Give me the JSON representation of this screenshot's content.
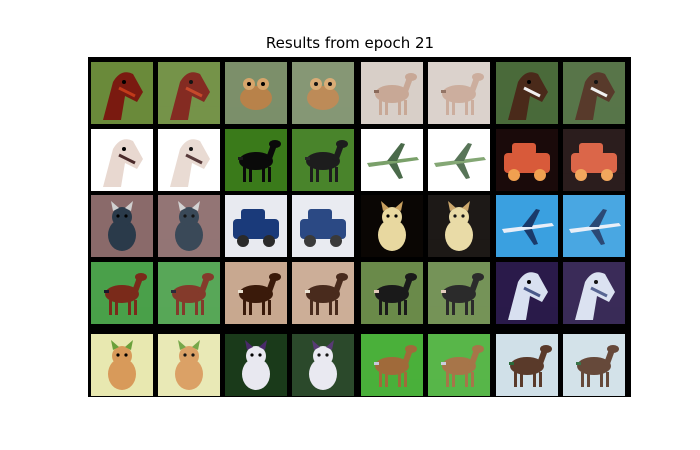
{
  "figure": {
    "title": "Results from epoch 21"
  },
  "grid": {
    "rows": 5,
    "pairs_per_row": 4,
    "background": "#000000",
    "pairs": [
      {
        "subject": "horse-head",
        "bg": "#6a8a3a",
        "fg": "#7a1a10",
        "accent": "#c23a1a"
      },
      {
        "subject": "frog",
        "bg": "#7c8f6a",
        "fg": "#b8824a",
        "accent": "#d6a56b"
      },
      {
        "subject": "horse",
        "bg": "#d8cfc8",
        "fg": "#c8a896",
        "accent": "#8a6a5a"
      },
      {
        "subject": "horse-head",
        "bg": "#4a6a3a",
        "fg": "#4a2a1a",
        "accent": "#f0f0f0"
      },
      {
        "subject": "horse-head",
        "bg": "#ffffff",
        "fg": "#e8d8d0",
        "accent": "#4a2a2a"
      },
      {
        "subject": "horse",
        "bg": "#3a7a1a",
        "fg": "#0a0a0a",
        "accent": "#1a1a1a"
      },
      {
        "subject": "airplane",
        "bg": "#ffffff",
        "fg": "#7aa06a",
        "accent": "#4a6a4a"
      },
      {
        "subject": "truck",
        "bg": "#1a0a0a",
        "fg": "#d85a3a",
        "accent": "#f0a050"
      },
      {
        "subject": "dog",
        "bg": "#8a6a6a",
        "fg": "#2a3a4a",
        "accent": "#d0d0d0"
      },
      {
        "subject": "car",
        "bg": "#e8eaf0",
        "fg": "#1a3a7a",
        "accent": "#2a2a2a"
      },
      {
        "subject": "dog",
        "bg": "#0a0604",
        "fg": "#e8d8a0",
        "accent": "#c8a060"
      },
      {
        "subject": "airplane",
        "bg": "#3aa0e0",
        "fg": "#e8eef8",
        "accent": "#1a3a6a"
      },
      {
        "subject": "horse",
        "bg": "#4aa04a",
        "fg": "#7a2a1a",
        "accent": "#1a1a2a"
      },
      {
        "subject": "horse",
        "bg": "#c8a890",
        "fg": "#3a1a0a",
        "accent": "#e8e0d0"
      },
      {
        "subject": "horse",
        "bg": "#6a8a4a",
        "fg": "#1a1a1a",
        "accent": "#e0c8b8"
      },
      {
        "subject": "horse-head",
        "bg": "#2a1a4a",
        "fg": "#d8e0f0",
        "accent": "#4a5a8a"
      },
      {
        "subject": "cat",
        "bg": "#e8e8b0",
        "fg": "#d89a5a",
        "accent": "#6aa03a"
      },
      {
        "subject": "dog",
        "bg": "#1a3a1a",
        "fg": "#e8e8f0",
        "accent": "#4a2a6a"
      },
      {
        "subject": "deer",
        "bg": "#4ab03a",
        "fg": "#a06a3a",
        "accent": "#c8c8d8"
      },
      {
        "subject": "horse",
        "bg": "#d0e0e8",
        "fg": "#5a3a2a",
        "accent": "#2a6a3a"
      }
    ]
  }
}
